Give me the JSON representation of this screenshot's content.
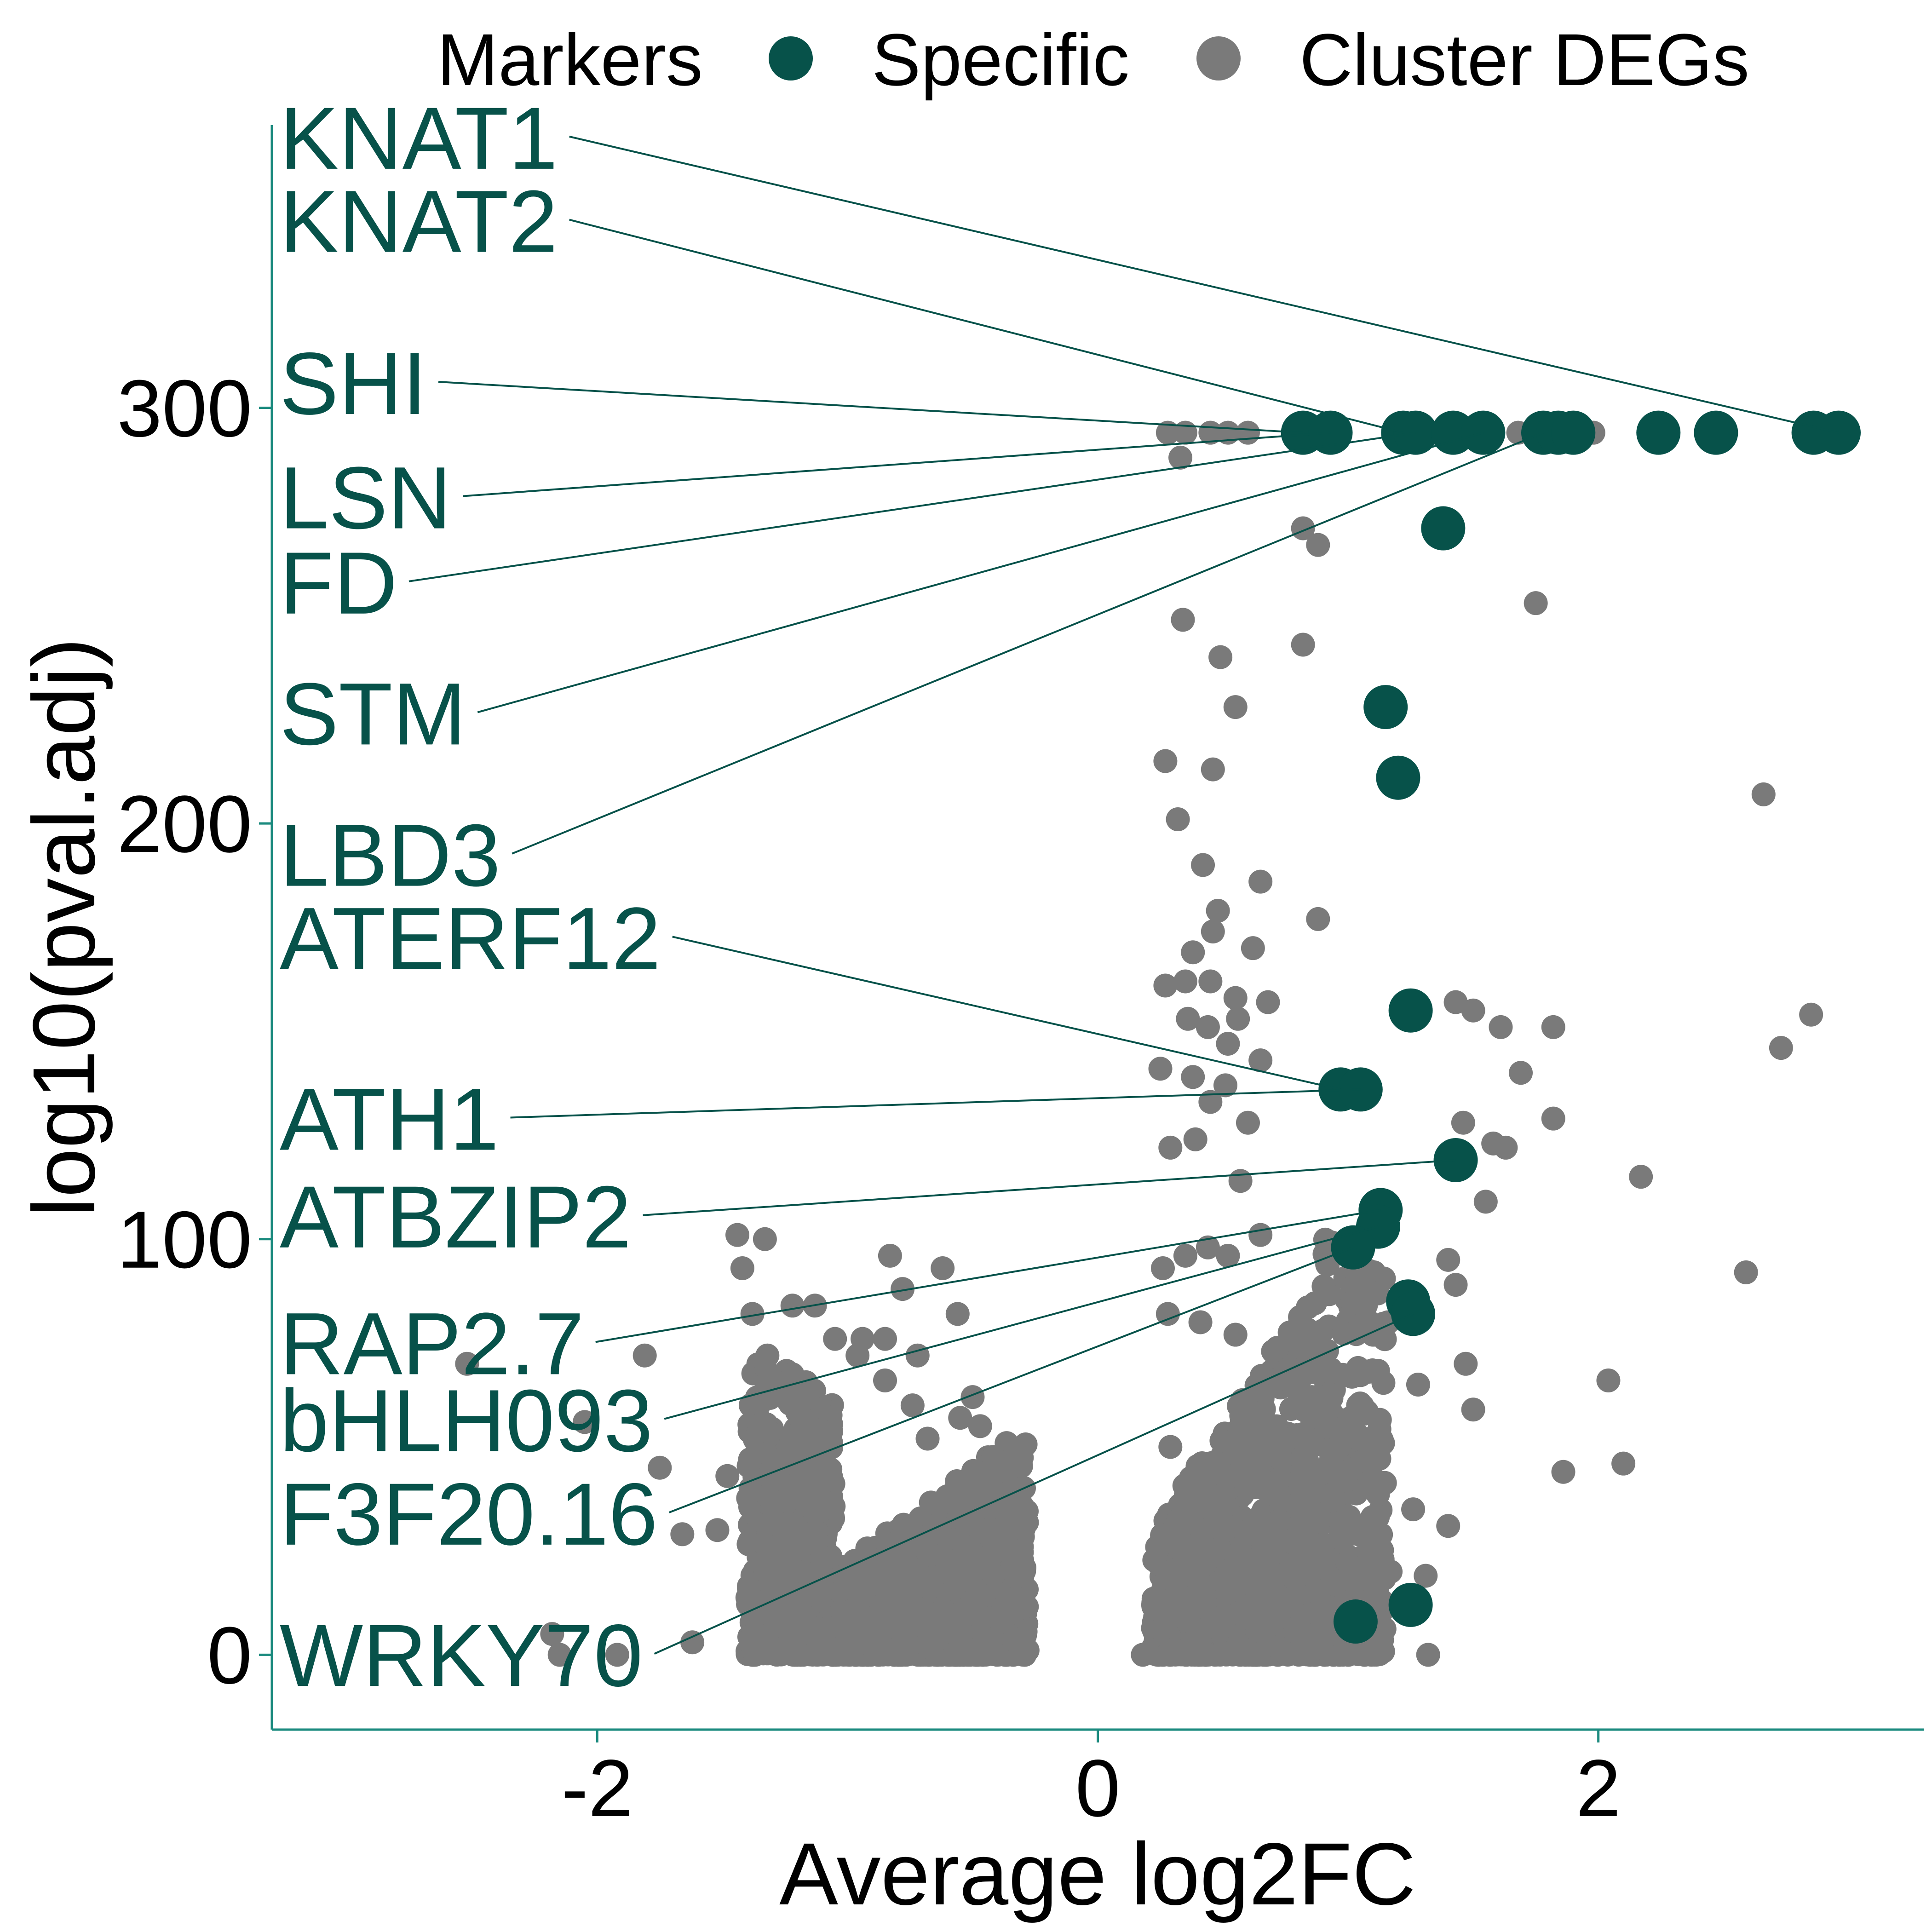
{
  "chart_data": {
    "type": "scatter",
    "xlabel": "Average log2FC",
    "ylabel": "log10(pval.adj)",
    "xlim": [
      -3.3,
      3.3
    ],
    "ylim": [
      -18,
      368
    ],
    "xticks": [
      -2,
      0,
      2
    ],
    "xtick_labels": [
      "-2",
      "0",
      "2"
    ],
    "yticks": [
      0,
      100,
      200,
      300
    ],
    "ytick_labels": [
      "0",
      "100",
      "200",
      "300"
    ],
    "grid": false,
    "legend": {
      "position": "top",
      "title": "Markers",
      "entries": [
        {
          "label": "Specific",
          "color": "#07524a"
        },
        {
          "label": "Cluster DEGs",
          "color": "#7a7a7a"
        }
      ]
    },
    "colors": {
      "specific": "#07524a",
      "cluster": "#7a7a7a",
      "axis": "#1a8a7e"
    },
    "series": [
      {
        "name": "Specific",
        "points": [
          [
            0.82,
            294
          ],
          [
            0.93,
            294
          ],
          [
            1.22,
            294
          ],
          [
            1.27,
            294
          ],
          [
            1.42,
            294
          ],
          [
            1.54,
            294
          ],
          [
            1.78,
            294
          ],
          [
            1.84,
            294
          ],
          [
            1.9,
            294
          ],
          [
            2.24,
            294
          ],
          [
            2.47,
            294
          ],
          [
            2.86,
            294
          ],
          [
            2.96,
            294
          ],
          [
            1.38,
            271
          ],
          [
            1.15,
            228
          ],
          [
            1.2,
            211
          ],
          [
            1.25,
            155
          ],
          [
            0.97,
            136
          ],
          [
            1.05,
            136
          ],
          [
            1.43,
            119
          ],
          [
            1.13,
            107
          ],
          [
            1.12,
            103
          ],
          [
            1.02,
            98
          ],
          [
            1.24,
            85
          ],
          [
            1.26,
            82
          ],
          [
            1.25,
            12
          ],
          [
            1.03,
            8
          ]
        ]
      },
      {
        "name": "Cluster DEGs",
        "points": [
          [
            0.28,
            294
          ],
          [
            0.35,
            294
          ],
          [
            0.45,
            294
          ],
          [
            0.52,
            294
          ],
          [
            0.6,
            294
          ],
          [
            1.68,
            294
          ],
          [
            1.98,
            294
          ],
          [
            0.33,
            288
          ],
          [
            0.82,
            271
          ],
          [
            0.88,
            267
          ],
          [
            1.75,
            253
          ],
          [
            0.34,
            249
          ],
          [
            0.82,
            243
          ],
          [
            0.49,
            240
          ],
          [
            0.55,
            228
          ],
          [
            0.27,
            215
          ],
          [
            0.46,
            213
          ],
          [
            2.66,
            207
          ],
          [
            0.32,
            201
          ],
          [
            0.42,
            190
          ],
          [
            0.65,
            186
          ],
          [
            0.48,
            179
          ],
          [
            0.88,
            177
          ],
          [
            0.46,
            174
          ],
          [
            0.38,
            169
          ],
          [
            0.62,
            170
          ],
          [
            0.27,
            161
          ],
          [
            0.35,
            162
          ],
          [
            0.45,
            162
          ],
          [
            0.55,
            158
          ],
          [
            0.68,
            157
          ],
          [
            0.36,
            153
          ],
          [
            0.44,
            151
          ],
          [
            0.56,
            153
          ],
          [
            0.52,
            147
          ],
          [
            0.65,
            143
          ],
          [
            0.25,
            141
          ],
          [
            0.38,
            139
          ],
          [
            0.51,
            137
          ],
          [
            0.45,
            133
          ],
          [
            0.6,
            128
          ],
          [
            0.29,
            122
          ],
          [
            0.39,
            124
          ],
          [
            0.57,
            114
          ],
          [
            1.43,
            157
          ],
          [
            1.5,
            155
          ],
          [
            1.61,
            151
          ],
          [
            1.82,
            151
          ],
          [
            1.69,
            140
          ],
          [
            2.85,
            154
          ],
          [
            2.73,
            146
          ],
          [
            1.82,
            129
          ],
          [
            1.46,
            128
          ],
          [
            1.58,
            123
          ],
          [
            1.63,
            122
          ],
          [
            2.17,
            115
          ],
          [
            1.55,
            109
          ],
          [
            2.59,
            92
          ],
          [
            2.04,
            66
          ],
          [
            2.1,
            46
          ],
          [
            1.86,
            44
          ],
          [
            1.47,
            70
          ],
          [
            1.5,
            59
          ],
          [
            1.28,
            65
          ],
          [
            1.4,
            95
          ],
          [
            1.43,
            89
          ],
          [
            1.26,
            35
          ],
          [
            1.4,
            31
          ],
          [
            1.17,
            20
          ],
          [
            1.31,
            19
          ],
          [
            1.32,
            0
          ],
          [
            -2.18,
            5
          ],
          [
            -2.15,
            0
          ],
          [
            -1.92,
            0
          ],
          [
            -2.52,
            70
          ],
          [
            -2.05,
            56
          ],
          [
            -1.81,
            72
          ],
          [
            -1.75,
            45
          ],
          [
            -1.66,
            29
          ],
          [
            -1.52,
            30
          ],
          [
            -1.62,
            3
          ],
          [
            -1.44,
            101
          ],
          [
            -1.42,
            93
          ],
          [
            -1.33,
            100
          ],
          [
            -1.38,
            82
          ],
          [
            -1.32,
            72
          ],
          [
            -1.22,
            84
          ],
          [
            -1.13,
            84
          ],
          [
            -1.48,
            43
          ],
          [
            -1.35,
            34
          ],
          [
            -1.33,
            23
          ],
          [
            -1.37,
            0
          ],
          [
            -1.38,
            5
          ],
          [
            -0.83,
            96
          ],
          [
            -0.62,
            93
          ],
          [
            -0.78,
            88
          ],
          [
            -0.56,
            82
          ],
          [
            -0.85,
            66
          ],
          [
            -0.72,
            72
          ],
          [
            -1.25,
            44
          ],
          [
            -1.17,
            64
          ],
          [
            -1.05,
            76
          ],
          [
            -0.94,
            76
          ],
          [
            -0.85,
            76
          ],
          [
            -0.96,
            72
          ],
          [
            -0.74,
            60
          ],
          [
            -0.68,
            52
          ],
          [
            -0.55,
            57
          ],
          [
            -0.5,
            62
          ],
          [
            -0.47,
            55
          ],
          [
            -0.38,
            46
          ],
          [
            -0.29,
            10
          ],
          [
            -0.55,
            0
          ],
          [
            0.18,
            0
          ],
          [
            0.26,
            93
          ],
          [
            0.35,
            96
          ],
          [
            0.44,
            98
          ],
          [
            0.52,
            96
          ],
          [
            0.65,
            101
          ],
          [
            0.28,
            82
          ],
          [
            0.41,
            80
          ],
          [
            0.55,
            77
          ],
          [
            0.7,
            73
          ],
          [
            0.8,
            69
          ],
          [
            0.92,
            66
          ],
          [
            1.04,
            69
          ],
          [
            1.1,
            77
          ],
          [
            1.16,
            80
          ],
          [
            0.82,
            59
          ],
          [
            0.95,
            55
          ],
          [
            1.04,
            60
          ],
          [
            0.65,
            48
          ],
          [
            0.8,
            44
          ],
          [
            0.96,
            39
          ],
          [
            1.03,
            41
          ],
          [
            0.72,
            28
          ],
          [
            0.91,
            20
          ],
          [
            1.02,
            15
          ],
          [
            0.84,
            5
          ],
          [
            0.63,
            8
          ],
          [
            0.29,
            50
          ]
        ]
      }
    ],
    "labels": [
      {
        "text": "KNAT1",
        "y": 357.5,
        "target": [
          2.96,
          294
        ]
      },
      {
        "text": "KNAT2",
        "y": 337.5,
        "target": [
          1.22,
          294
        ]
      },
      {
        "text": "SHI",
        "y": 298.5,
        "target": [
          0.82,
          294
        ]
      },
      {
        "text": "LSN",
        "y": 271,
        "target": [
          0.93,
          294
        ]
      },
      {
        "text": "FD",
        "y": 250.5,
        "target": [
          1.27,
          294
        ]
      },
      {
        "text": "STM",
        "y": 219,
        "target": [
          1.54,
          294
        ]
      },
      {
        "text": "LBD3",
        "y": 185,
        "target": [
          1.78,
          294
        ]
      },
      {
        "text": "ATERF12",
        "y": 165,
        "target": [
          0.97,
          136
        ]
      },
      {
        "text": "ATH1",
        "y": 121.5,
        "target": [
          1.05,
          136
        ]
      },
      {
        "text": "ATBZIP2",
        "y": 98,
        "target": [
          1.43,
          119
        ]
      },
      {
        "text": "RAP2.7",
        "y": 67.5,
        "target": [
          1.13,
          107
        ]
      },
      {
        "text": "bHLH093",
        "y": 49,
        "target": [
          1.12,
          103
        ]
      },
      {
        "text": "F3F20.16",
        "y": 26.5,
        "target": [
          1.02,
          98
        ]
      },
      {
        "text": "WRKY70",
        "y": -7.5,
        "target": [
          1.26,
          82
        ]
      }
    ]
  }
}
